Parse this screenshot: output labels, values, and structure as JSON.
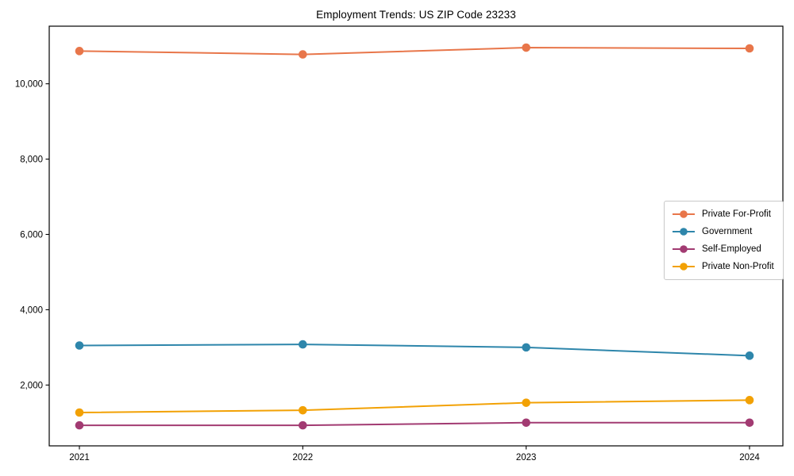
{
  "chart_data": {
    "type": "line",
    "title": "Employment Trends: US ZIP Code 23233",
    "x": [
      2021,
      2022,
      2023,
      2024
    ],
    "xtick_labels": [
      "2021",
      "2022",
      "2023",
      "2024"
    ],
    "yticks": [
      2000,
      4000,
      6000,
      8000,
      10000
    ],
    "ytick_labels": [
      "2,000",
      "4,000",
      "6,000",
      "8,000",
      "10,000"
    ],
    "ylim": [
      385,
      11530
    ],
    "grid": false,
    "legend_position": "center-right",
    "series": [
      {
        "name": "Private For-Profit",
        "color": "#E8764A",
        "values": [
          10870,
          10780,
          10960,
          10940
        ]
      },
      {
        "name": "Government",
        "color": "#2E86AB",
        "values": [
          3050,
          3080,
          3000,
          2780
        ]
      },
      {
        "name": "Self-Employed",
        "color": "#A23B72",
        "values": [
          930,
          930,
          1000,
          1000
        ]
      },
      {
        "name": "Private Non-Profit",
        "color": "#F2A104",
        "values": [
          1270,
          1330,
          1530,
          1600
        ]
      }
    ],
    "axis_color": "#000000",
    "tick_label_color": "#000000"
  }
}
